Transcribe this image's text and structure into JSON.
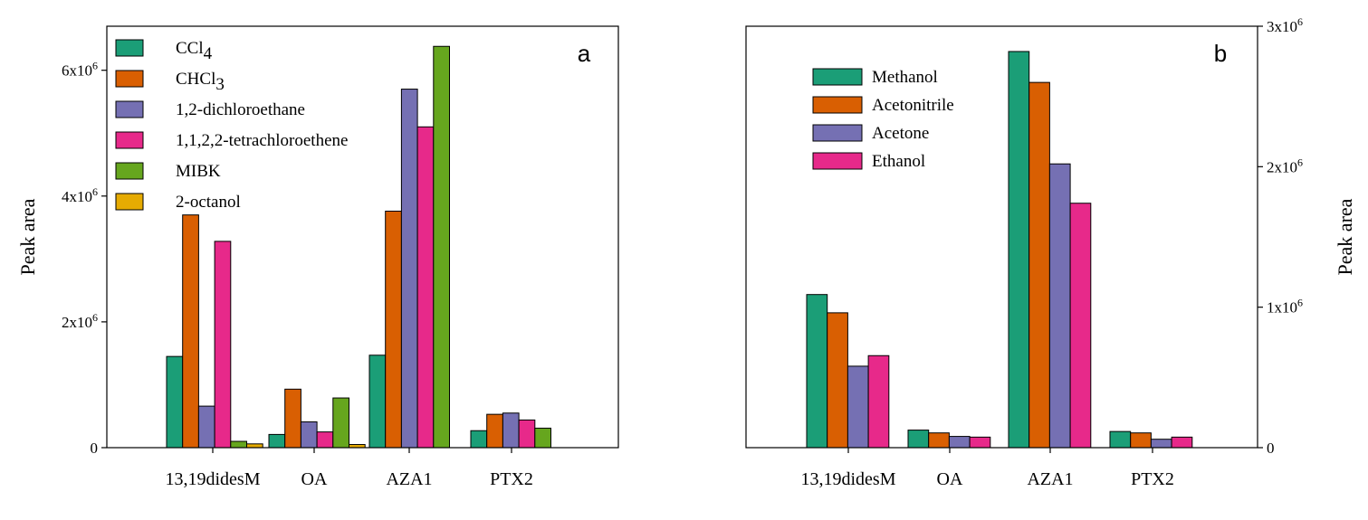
{
  "chart_data": [
    {
      "type": "bar",
      "panel_label": "a",
      "ylabel": "Peak area",
      "xlabel": "",
      "ylim": [
        0,
        6700000
      ],
      "y_axis_side": "left",
      "yticks": [
        {
          "value": 0,
          "label": "0"
        },
        {
          "value": 2000000,
          "base": "2x10",
          "exp": "6"
        },
        {
          "value": 4000000,
          "base": "4x10",
          "exp": "6"
        },
        {
          "value": 6000000,
          "base": "6x10",
          "exp": "6"
        }
      ],
      "categories": [
        "13,19didesM",
        "OA",
        "AZA1",
        "PTX2"
      ],
      "legend_position": "top-left",
      "series": [
        {
          "name": "CCl4",
          "legend_parts": [
            [
              "CCl",
              ""
            ],
            [
              "4",
              "sub"
            ]
          ],
          "color": "#1b9e77",
          "values": [
            1450000,
            210000,
            1470000,
            270000
          ]
        },
        {
          "name": "CHCl3",
          "legend_parts": [
            [
              "CHCl",
              ""
            ],
            [
              "3",
              "sub"
            ]
          ],
          "color": "#d95f02",
          "values": [
            3700000,
            930000,
            3760000,
            530000
          ]
        },
        {
          "name": "1,2-dichloroethane",
          "color": "#7570b3",
          "values": [
            660000,
            410000,
            5700000,
            550000
          ]
        },
        {
          "name": "1,1,2,2-tetrachloroethene",
          "color": "#e7298a",
          "values": [
            3280000,
            250000,
            5100000,
            440000
          ]
        },
        {
          "name": "MIBK",
          "color": "#66a61e",
          "values": [
            100000,
            790000,
            6380000,
            310000
          ]
        },
        {
          "name": "2-octanol",
          "color": "#e6ab02",
          "values": [
            60000,
            50000,
            0,
            0
          ]
        }
      ]
    },
    {
      "type": "bar",
      "panel_label": "b",
      "ylabel": "Peak area",
      "xlabel": "",
      "ylim": [
        0,
        3000000
      ],
      "y_axis_side": "right",
      "yticks": [
        {
          "value": 0,
          "label": "0"
        },
        {
          "value": 1000000,
          "base": "1x10",
          "exp": "6"
        },
        {
          "value": 2000000,
          "base": "2x10",
          "exp": "6"
        },
        {
          "value": 3000000,
          "base": "3x10",
          "exp": "6"
        }
      ],
      "categories": [
        "13,19didesM",
        "OA",
        "AZA1",
        "PTX2"
      ],
      "legend_position": "top-left",
      "series": [
        {
          "name": "Methanol",
          "color": "#1b9e77",
          "values": [
            1090000,
            125000,
            2820000,
            115000
          ]
        },
        {
          "name": "Acetonitrile",
          "color": "#d95f02",
          "values": [
            960000,
            105000,
            2600000,
            105000
          ]
        },
        {
          "name": "Acetone",
          "color": "#7570b3",
          "values": [
            580000,
            80000,
            2020000,
            60000
          ]
        },
        {
          "name": "Ethanol",
          "color": "#e7298a",
          "values": [
            655000,
            75000,
            1740000,
            75000
          ]
        }
      ]
    }
  ]
}
